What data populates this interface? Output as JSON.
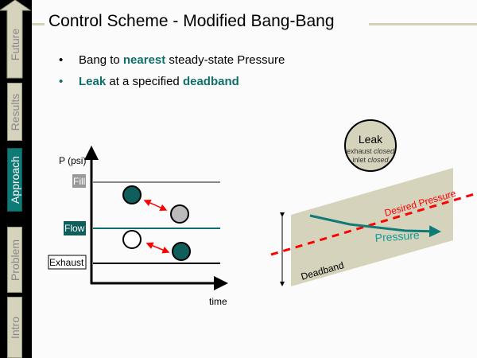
{
  "sidebar": {
    "items": [
      {
        "label": "Future",
        "active": false
      },
      {
        "label": "Results",
        "active": false
      },
      {
        "label": "Approach",
        "active": true
      },
      {
        "label": "Problem",
        "active": false
      },
      {
        "label": "Intro",
        "active": false
      }
    ]
  },
  "slide": {
    "title": "Control Scheme - Modified Bang-Bang",
    "bullets": [
      {
        "pre": "Bang to ",
        "em": "nearest",
        "post": " steady-state Pressure"
      },
      {
        "em": "Leak",
        "mid": " at a specified ",
        "em2": "deadband"
      }
    ]
  },
  "left_diagram": {
    "y_axis_label": "P (psi)",
    "x_axis_label": "time",
    "levels": [
      "Fill",
      "Flow",
      "Exhaust"
    ]
  },
  "right_diagram": {
    "state_title": "Leak",
    "state_line1_a": "exhaust ",
    "state_line1_b": "closed",
    "state_line2_a": "inlet ",
    "state_line2_b": "closed",
    "desired_label": "Desired Pressure",
    "pressure_label": "Pressure",
    "deadband_label": "Deadband"
  },
  "colors": {
    "accent": "#0f7b77",
    "tan": "#d6d3bd",
    "desired": "#ff0000"
  }
}
